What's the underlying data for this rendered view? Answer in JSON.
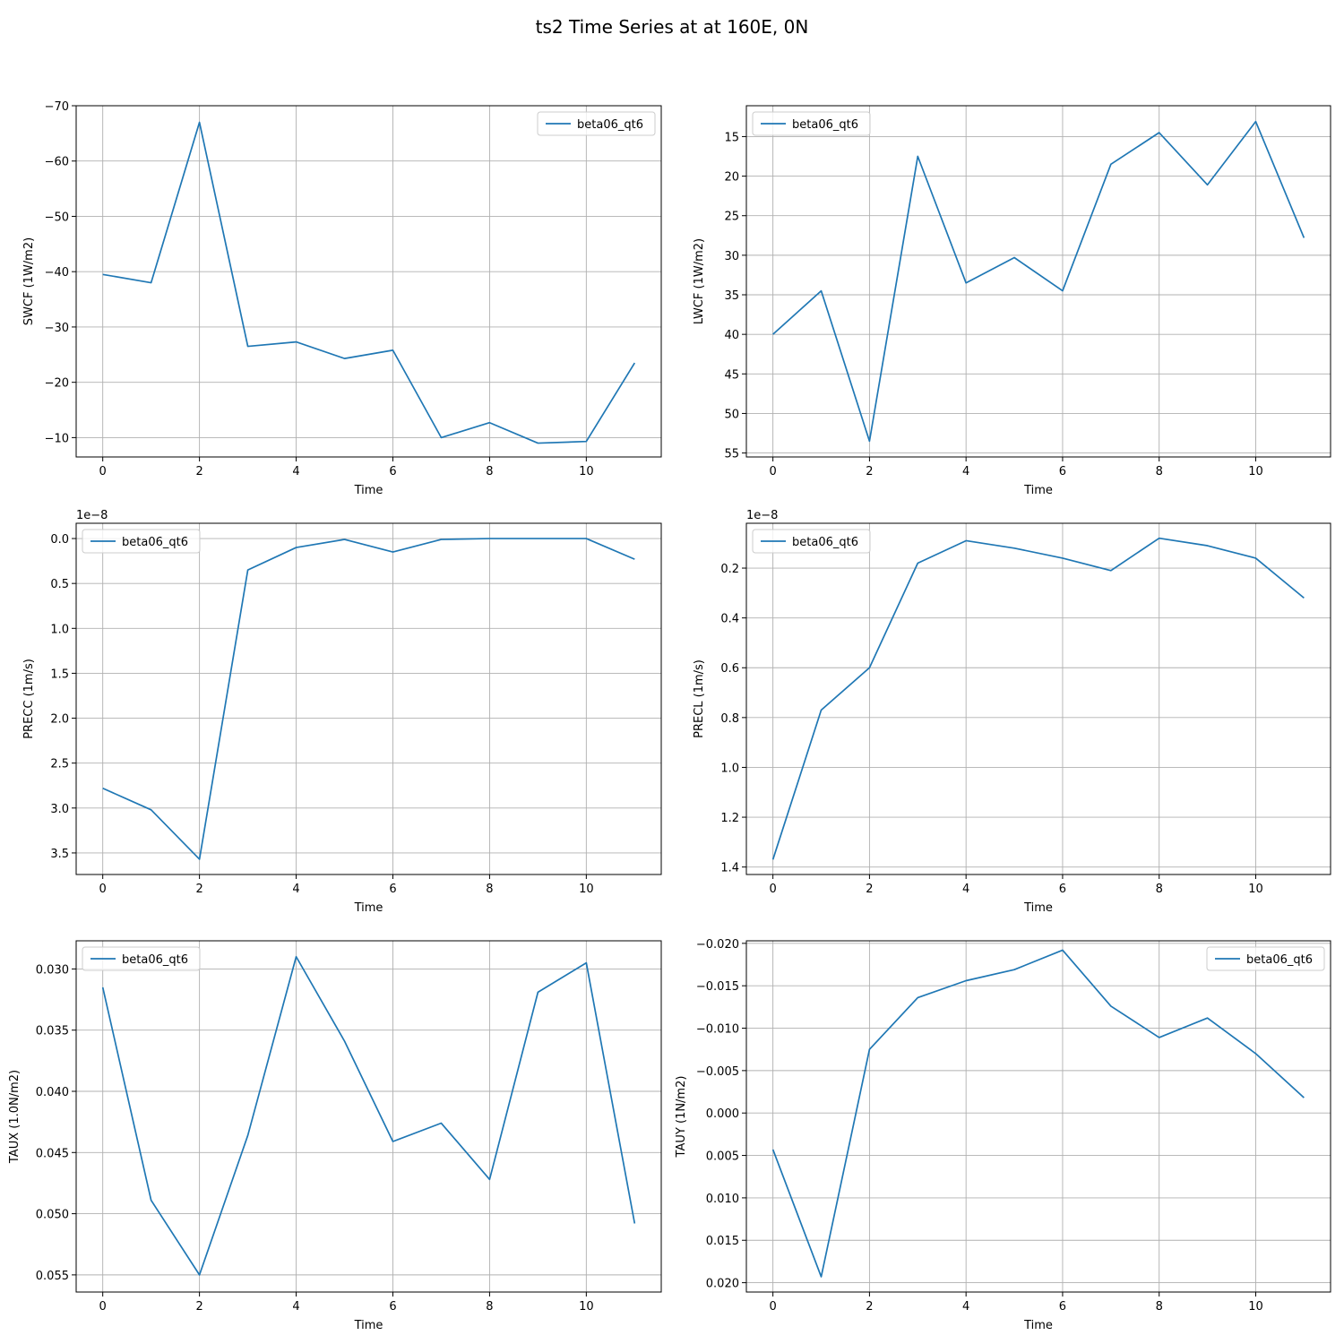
{
  "figure": {
    "title": "ts2 Time Series at at 160E, 0N",
    "line_color": "#1f77b4",
    "grid_color": "#b0b0b0"
  },
  "chart_data": [
    {
      "type": "line",
      "title": "",
      "xlabel": "Time",
      "ylabel": "SWCF (1W/m2)",
      "x": [
        0,
        1,
        2,
        3,
        4,
        5,
        6,
        7,
        8,
        9,
        10,
        11
      ],
      "series": [
        {
          "name": "beta06_qt6",
          "values": [
            -39.5,
            -38.0,
            -67.0,
            -26.5,
            -27.3,
            -24.3,
            -25.8,
            -10.0,
            -12.7,
            -9.0,
            -9.3,
            -23.5
          ]
        }
      ],
      "ylim": [
        -6.5,
        -70
      ],
      "y_inverted": true,
      "xlim": [
        -0.55,
        11.55
      ],
      "xticks": [
        0,
        2,
        4,
        6,
        8,
        10
      ],
      "yticks": [
        -70,
        -60,
        -50,
        -40,
        -30,
        -20,
        -10
      ],
      "ytick_labels": [
        "−70",
        "−60",
        "−50",
        "−40",
        "−30",
        "−20",
        "−10"
      ],
      "offset_text": "",
      "grid": true,
      "legend": "upper right"
    },
    {
      "type": "line",
      "title": "",
      "xlabel": "Time",
      "ylabel": "LWCF (1W/m2)",
      "x": [
        0,
        1,
        2,
        3,
        4,
        5,
        6,
        7,
        8,
        9,
        10,
        11
      ],
      "series": [
        {
          "name": "beta06_qt6",
          "values": [
            40.0,
            34.5,
            53.5,
            17.5,
            33.5,
            30.3,
            34.5,
            18.5,
            14.5,
            21.1,
            13.1,
            27.8
          ]
        }
      ],
      "ylim": [
        55.5,
        11.1
      ],
      "y_inverted": true,
      "xlim": [
        -0.55,
        11.55
      ],
      "xticks": [
        0,
        2,
        4,
        6,
        8,
        10
      ],
      "yticks": [
        15,
        20,
        25,
        30,
        35,
        40,
        45,
        50,
        55
      ],
      "ytick_labels": [
        "15",
        "20",
        "25",
        "30",
        "35",
        "40",
        "45",
        "50",
        "55"
      ],
      "offset_text": "",
      "grid": true,
      "legend": "upper left"
    },
    {
      "type": "line",
      "title": "",
      "xlabel": "Time",
      "ylabel": "PRECC (1m/s)",
      "x": [
        0,
        1,
        2,
        3,
        4,
        5,
        6,
        7,
        8,
        9,
        10,
        11
      ],
      "series": [
        {
          "name": "beta06_qt6",
          "values": [
            2.78,
            3.02,
            3.57,
            0.35,
            0.1,
            0.01,
            0.15,
            0.01,
            0.0,
            0.0,
            0.0,
            0.23
          ]
        }
      ],
      "ylim": [
        3.74,
        -0.17
      ],
      "y_inverted": true,
      "xlim": [
        -0.55,
        11.55
      ],
      "xticks": [
        0,
        2,
        4,
        6,
        8,
        10
      ],
      "yticks": [
        0.0,
        0.5,
        1.0,
        1.5,
        2.0,
        2.5,
        3.0,
        3.5
      ],
      "ytick_labels": [
        "0.0",
        "0.5",
        "1.0",
        "1.5",
        "2.0",
        "2.5",
        "3.0",
        "3.5"
      ],
      "offset_text": "1e−8",
      "y_multiplier": "1e-8",
      "grid": true,
      "legend": "upper left"
    },
    {
      "type": "line",
      "title": "",
      "xlabel": "Time",
      "ylabel": "PRECL (1m/s)",
      "x": [
        0,
        1,
        2,
        3,
        4,
        5,
        6,
        7,
        8,
        9,
        10,
        11
      ],
      "series": [
        {
          "name": "beta06_qt6",
          "values": [
            1.37,
            0.77,
            0.6,
            0.18,
            0.09,
            0.12,
            0.16,
            0.21,
            0.08,
            0.11,
            0.16,
            0.32
          ]
        }
      ],
      "ylim": [
        1.43,
        0.02
      ],
      "y_inverted": true,
      "xlim": [
        -0.55,
        11.55
      ],
      "xticks": [
        0,
        2,
        4,
        6,
        8,
        10
      ],
      "yticks": [
        0.2,
        0.4,
        0.6,
        0.8,
        1.0,
        1.2,
        1.4
      ],
      "ytick_labels": [
        "0.2",
        "0.4",
        "0.6",
        "0.8",
        "1.0",
        "1.2",
        "1.4"
      ],
      "offset_text": "1e−8",
      "y_multiplier": "1e-8",
      "grid": true,
      "legend": "upper left"
    },
    {
      "type": "line",
      "title": "",
      "xlabel": "Time",
      "ylabel": "TAUX (1.0N/m2)",
      "x": [
        0,
        1,
        2,
        3,
        4,
        5,
        6,
        7,
        8,
        9,
        10,
        11
      ],
      "series": [
        {
          "name": "beta06_qt6",
          "values": [
            0.0315,
            0.0489,
            0.055,
            0.0436,
            0.029,
            0.0359,
            0.0441,
            0.0426,
            0.0472,
            0.0319,
            0.0295,
            0.0508
          ]
        }
      ],
      "ylim": [
        0.0564,
        0.0277
      ],
      "y_inverted": true,
      "xlim": [
        -0.55,
        11.55
      ],
      "xticks": [
        0,
        2,
        4,
        6,
        8,
        10
      ],
      "yticks": [
        0.03,
        0.035,
        0.04,
        0.045,
        0.05,
        0.055
      ],
      "ytick_labels": [
        "0.030",
        "0.035",
        "0.040",
        "0.045",
        "0.050",
        "0.055"
      ],
      "offset_text": "",
      "grid": true,
      "legend": "upper left"
    },
    {
      "type": "line",
      "title": "",
      "xlabel": "Time",
      "ylabel": "TAUY (1N/m2)",
      "x": [
        0,
        1,
        2,
        3,
        4,
        5,
        6,
        7,
        8,
        9,
        10,
        11
      ],
      "series": [
        {
          "name": "beta06_qt6",
          "values": [
            0.0043,
            0.0193,
            -0.0075,
            -0.0136,
            -0.0156,
            -0.0169,
            -0.0192,
            -0.0126,
            -0.0089,
            -0.0112,
            -0.007,
            -0.0018
          ]
        }
      ],
      "ylim": [
        0.0211,
        -0.0203
      ],
      "y_inverted": true,
      "xlim": [
        -0.55,
        11.55
      ],
      "xticks": [
        0,
        2,
        4,
        6,
        8,
        10
      ],
      "yticks": [
        -0.02,
        -0.015,
        -0.01,
        -0.005,
        0.0,
        0.005,
        0.01,
        0.015,
        0.02
      ],
      "ytick_labels": [
        "−0.020",
        "−0.015",
        "−0.010",
        "−0.005",
        "0.000",
        "0.005",
        "0.010",
        "0.015",
        "0.020"
      ],
      "offset_text": "",
      "grid": true,
      "legend": "upper right"
    }
  ]
}
